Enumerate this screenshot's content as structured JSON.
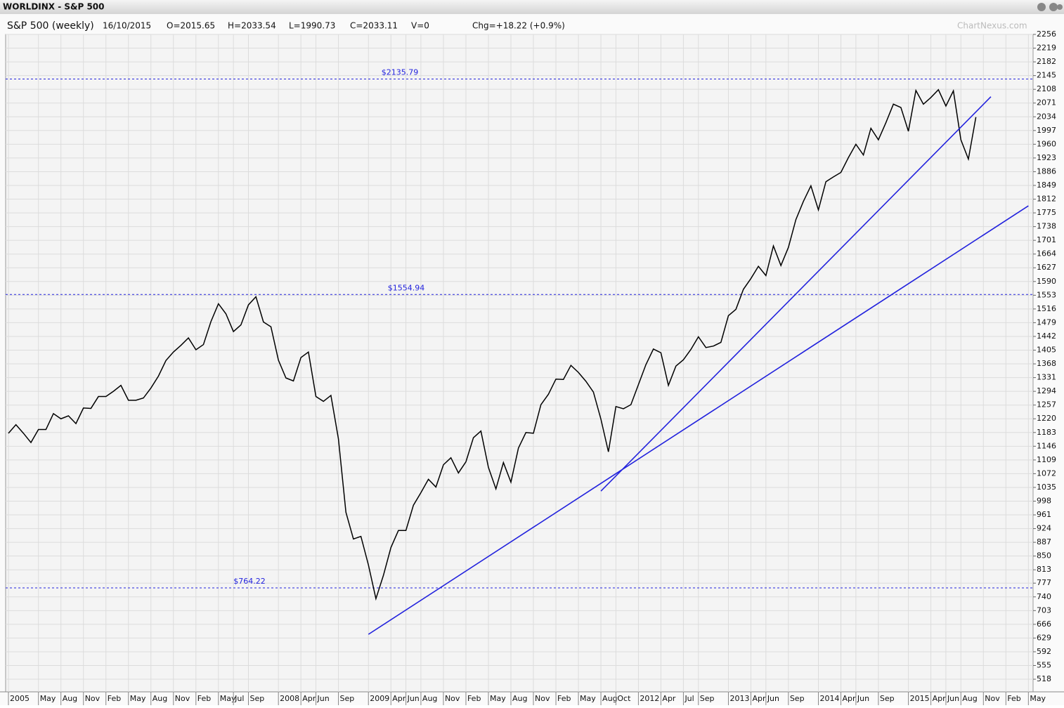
{
  "chart_data": {
    "type": "line",
    "title": "WORLDINX - S&P 500",
    "subtitle": "S&P 500 (weekly)",
    "info": [
      "16/10/2015",
      "O=2015.65",
      "H=2033.54",
      "L=1990.73",
      "C=2033.11",
      "V=0",
      "Chg=+18.22 (+0.9%)"
    ],
    "watermark": "ChartNexus.com",
    "x": [
      "2005-01",
      "2005-02",
      "2005-03",
      "2005-04",
      "2005-05",
      "2005-06",
      "2005-07",
      "2005-08",
      "2005-09",
      "2005-10",
      "2005-11",
      "2005-12",
      "2006-01",
      "2006-02",
      "2006-03",
      "2006-04",
      "2006-05",
      "2006-06",
      "2006-07",
      "2006-08",
      "2006-09",
      "2006-10",
      "2006-11",
      "2006-12",
      "2007-01",
      "2007-02",
      "2007-03",
      "2007-04",
      "2007-05",
      "2007-06",
      "2007-07",
      "2007-08",
      "2007-09",
      "2007-10",
      "2007-11",
      "2007-12",
      "2008-01",
      "2008-02",
      "2008-03",
      "2008-04",
      "2008-05",
      "2008-06",
      "2008-07",
      "2008-08",
      "2008-09",
      "2008-10",
      "2008-11",
      "2008-12",
      "2009-01",
      "2009-02",
      "2009-03",
      "2009-04",
      "2009-05",
      "2009-06",
      "2009-07",
      "2009-08",
      "2009-09",
      "2009-10",
      "2009-11",
      "2009-12",
      "2010-01",
      "2010-02",
      "2010-03",
      "2010-04",
      "2010-05",
      "2010-06",
      "2010-07",
      "2010-08",
      "2010-09",
      "2010-10",
      "2010-11",
      "2010-12",
      "2011-01",
      "2011-02",
      "2011-03",
      "2011-04",
      "2011-05",
      "2011-06",
      "2011-07",
      "2011-08",
      "2011-09",
      "2011-10",
      "2011-11",
      "2011-12",
      "2012-01",
      "2012-02",
      "2012-03",
      "2012-04",
      "2012-05",
      "2012-06",
      "2012-07",
      "2012-08",
      "2012-09",
      "2012-10",
      "2012-11",
      "2012-12",
      "2013-01",
      "2013-02",
      "2013-03",
      "2013-04",
      "2013-05",
      "2013-06",
      "2013-07",
      "2013-08",
      "2013-09",
      "2013-10",
      "2013-11",
      "2013-12",
      "2014-01",
      "2014-02",
      "2014-03",
      "2014-04",
      "2014-05",
      "2014-06",
      "2014-07",
      "2014-08",
      "2014-09",
      "2014-10",
      "2014-11",
      "2014-12",
      "2015-01",
      "2015-02",
      "2015-03",
      "2015-04",
      "2015-05",
      "2015-06",
      "2015-07",
      "2015-08",
      "2015-09",
      "2015-10"
    ],
    "series": [
      {
        "name": "S&P 500",
        "color": "#000000",
        "values": [
          1181,
          1204,
          1181,
          1156,
          1191,
          1191,
          1234,
          1220,
          1228,
          1207,
          1249,
          1248,
          1280,
          1280,
          1294,
          1310,
          1270,
          1270,
          1276,
          1303,
          1335,
          1377,
          1400,
          1418,
          1438,
          1406,
          1420,
          1482,
          1530,
          1503,
          1455,
          1473,
          1527,
          1549,
          1481,
          1468,
          1378,
          1330,
          1322,
          1385,
          1400,
          1280,
          1267,
          1283,
          1166,
          968,
          896,
          903,
          826,
          735,
          798,
          873,
          919,
          919,
          987,
          1021,
          1057,
          1036,
          1096,
          1115,
          1074,
          1104,
          1169,
          1187,
          1089,
          1031,
          1102,
          1049,
          1141,
          1183,
          1181,
          1258,
          1286,
          1327,
          1326,
          1364,
          1345,
          1321,
          1292,
          1219,
          1131,
          1253,
          1247,
          1258,
          1312,
          1366,
          1408,
          1398,
          1310,
          1362,
          1379,
          1407,
          1441,
          1412,
          1416,
          1426,
          1498,
          1515,
          1569,
          1598,
          1631,
          1606,
          1686,
          1633,
          1682,
          1757,
          1806,
          1848,
          1783,
          1859,
          1872,
          1884,
          1924,
          1960,
          1931,
          2003,
          1972,
          2018,
          2068,
          2059,
          1995,
          2105,
          2068,
          2086,
          2107,
          2063,
          2104,
          1972,
          1920,
          2033
        ]
      }
    ],
    "reference_lines": [
      {
        "value": 2135.79,
        "label": "$2135.79"
      },
      {
        "value": 1554.94,
        "label": "$1554.94"
      },
      {
        "value": 764.22,
        "label": "$764.22"
      }
    ],
    "trend_lines": [
      {
        "x": [
          "2009-01",
          "2016-05"
        ],
        "y": [
          639,
          1794
        ]
      },
      {
        "x": [
          "2011-08",
          "2015-12"
        ],
        "y": [
          1025,
          2088
        ]
      }
    ],
    "trend_color": "#2222dd",
    "xlim": [
      "2004-12-20",
      "2016-05-20"
    ],
    "ylim": [
      484,
      2256
    ],
    "yticks": [
      518,
      555,
      592,
      629,
      666,
      703,
      740,
      777,
      813,
      850,
      887,
      924,
      961,
      998,
      1035,
      1072,
      1109,
      1146,
      1183,
      1220,
      1257,
      1294,
      1331,
      1368,
      1405,
      1442,
      1479,
      1516,
      1553,
      1590,
      1627,
      1664,
      1701,
      1738,
      1775,
      1812,
      1849,
      1886,
      1923,
      1960,
      1997,
      2034,
      2071,
      2108,
      2145,
      2182,
      2219,
      2256
    ],
    "xticks": [
      {
        "value": "2005-01",
        "label": "2005"
      },
      {
        "value": "2005-05",
        "label": "May"
      },
      {
        "value": "2005-08",
        "label": "Aug"
      },
      {
        "value": "2005-11",
        "label": "Nov"
      },
      {
        "value": "2006-02",
        "label": "Feb"
      },
      {
        "value": "2006-05",
        "label": "May"
      },
      {
        "value": "2006-08",
        "label": "Aug"
      },
      {
        "value": "2006-11",
        "label": "Nov"
      },
      {
        "value": "2007-02",
        "label": "Feb"
      },
      {
        "value": "2007-05",
        "label": "May"
      },
      {
        "value": "2007-07",
        "label": "Jul"
      },
      {
        "value": "2007-09",
        "label": "Sep"
      },
      {
        "value": "2008-01",
        "label": "2008"
      },
      {
        "value": "2008-04",
        "label": "Apr"
      },
      {
        "value": "2008-06",
        "label": "Jun"
      },
      {
        "value": "2008-09",
        "label": "Sep"
      },
      {
        "value": "2009-01",
        "label": "2009"
      },
      {
        "value": "2009-04",
        "label": "Apr"
      },
      {
        "value": "2009-06",
        "label": "Jun"
      },
      {
        "value": "2009-08",
        "label": "Aug"
      },
      {
        "value": "2009-11",
        "label": "Nov"
      },
      {
        "value": "2010-02",
        "label": "Feb"
      },
      {
        "value": "2010-05",
        "label": "May"
      },
      {
        "value": "2010-08",
        "label": "Aug"
      },
      {
        "value": "2010-11",
        "label": "Nov"
      },
      {
        "value": "2011-02",
        "label": "Feb"
      },
      {
        "value": "2011-05",
        "label": "May"
      },
      {
        "value": "2011-08",
        "label": "Aug"
      },
      {
        "value": "2011-10",
        "label": "Oct"
      },
      {
        "value": "2012-01",
        "label": "2012"
      },
      {
        "value": "2012-04",
        "label": "Apr"
      },
      {
        "value": "2012-07",
        "label": "Jul"
      },
      {
        "value": "2012-09",
        "label": "Sep"
      },
      {
        "value": "2013-01",
        "label": "2013"
      },
      {
        "value": "2013-04",
        "label": "Apr"
      },
      {
        "value": "2013-06",
        "label": "Jun"
      },
      {
        "value": "2013-09",
        "label": "Sep"
      },
      {
        "value": "2014-01",
        "label": "2014"
      },
      {
        "value": "2014-04",
        "label": "Apr"
      },
      {
        "value": "2014-06",
        "label": "Jun"
      },
      {
        "value": "2014-09",
        "label": "Sep"
      },
      {
        "value": "2015-01",
        "label": "2015"
      },
      {
        "value": "2015-04",
        "label": "Apr"
      },
      {
        "value": "2015-06",
        "label": "Jun"
      },
      {
        "value": "2015-08",
        "label": "Aug"
      },
      {
        "value": "2015-11",
        "label": "Nov"
      },
      {
        "value": "2016-02",
        "label": "Feb"
      },
      {
        "value": "2016-05",
        "label": "May"
      }
    ],
    "grid": true
  }
}
